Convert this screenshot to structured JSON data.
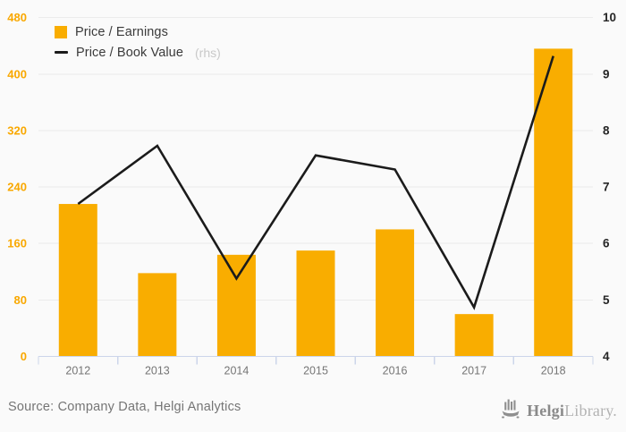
{
  "legend": {
    "items": [
      {
        "label": "Price / Earnings",
        "type": "bar"
      },
      {
        "label": "Price / Book Value",
        "suffix": "(rhs)",
        "type": "line"
      }
    ]
  },
  "chart_data": {
    "type": "bar+line",
    "title": "",
    "categories": [
      "2012",
      "2013",
      "2014",
      "2015",
      "2016",
      "2017",
      "2018"
    ],
    "series": [
      {
        "name": "Price / Earnings",
        "type": "bar",
        "axis": "left",
        "values": [
          216,
          118,
          144,
          150,
          180,
          60,
          436
        ]
      },
      {
        "name": "Price / Book Value (rhs)",
        "type": "line",
        "axis": "right",
        "values": [
          6.7,
          7.73,
          5.38,
          7.56,
          7.31,
          4.87,
          9.32
        ]
      }
    ],
    "left_axis": {
      "min": 0,
      "max": 480,
      "step": 80,
      "tick_labels": [
        "0",
        "80",
        "160",
        "240",
        "320",
        "400",
        "480"
      ]
    },
    "right_axis": {
      "min": 4,
      "max": 10,
      "step": 1,
      "tick_labels": [
        "4",
        "5",
        "6",
        "7",
        "8",
        "9",
        "10"
      ]
    },
    "grid": true,
    "legend_position": "top-left"
  },
  "colors": {
    "bar": "#F9AD00",
    "left_label": "#F9A800",
    "line": "#1b1b1b",
    "grid": "#ebebeb",
    "axis": "#ccd5ea",
    "right_label": "#262626",
    "year_label": "#757575",
    "rhs_text": "#c9c9c9"
  },
  "footer": {
    "source": "Source: Company Data, Helgi Analytics"
  },
  "logo": {
    "name_bold": "Helgi",
    "name_light": "Library."
  }
}
